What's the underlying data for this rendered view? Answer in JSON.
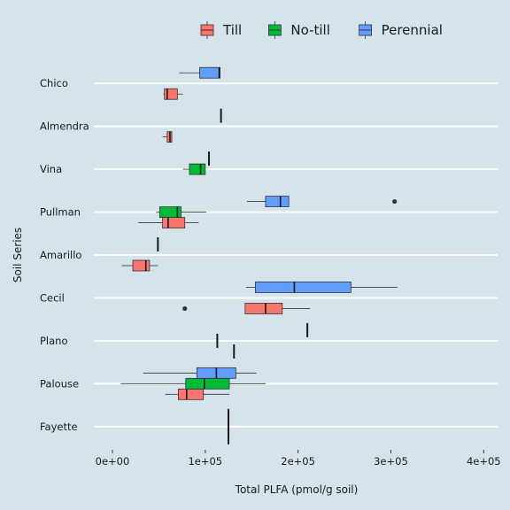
{
  "chart_data": {
    "type": "boxplot",
    "orientation": "horizontal",
    "xlabel": "Total PLFA (pmol/g soil)",
    "ylabel": "Soil Series",
    "xlim": [
      -20000,
      415000
    ],
    "x_ticks": [
      0,
      100000,
      200000,
      300000,
      400000
    ],
    "x_tick_labels": [
      "0e+00",
      "1e+05",
      "2e+05",
      "3e+05",
      "4e+05"
    ],
    "categories": [
      "Fayette",
      "Palouse",
      "Plano",
      "Cecil",
      "Amarillo",
      "Pullman",
      "Vina",
      "Almendra",
      "Chico"
    ],
    "legend": {
      "position": "top",
      "entries": [
        {
          "name": "Till",
          "color": "#f8766d"
        },
        {
          "name": "No-till",
          "color": "#00ba38"
        },
        {
          "name": "Perennial",
          "color": "#619cff"
        }
      ]
    },
    "grid": {
      "horizontal": true,
      "vertical": false
    },
    "series": [
      {
        "name": "Till",
        "color": "#f8766d",
        "boxes": [
          {
            "category": "Chico",
            "whisker_low": 55000,
            "q1": 56000,
            "median": 59000,
            "q3": 70000,
            "whisker_high": 76000,
            "outliers": []
          },
          {
            "category": "Almendra",
            "whisker_low": 54000,
            "q1": 59000,
            "median": 62000,
            "q3": 64000,
            "whisker_high": 64000,
            "outliers": []
          },
          {
            "category": "Pullman",
            "whisker_low": 28000,
            "q1": 54000,
            "median": 60000,
            "q3": 78000,
            "whisker_high": 93000,
            "outliers": []
          },
          {
            "category": "Amarillo",
            "whisker_low": 10000,
            "q1": 22000,
            "median": 36000,
            "q3": 40000,
            "whisker_high": 49000,
            "outliers": []
          },
          {
            "category": "Cecil",
            "whisker_low": 143000,
            "q1": 143000,
            "median": 165000,
            "q3": 183000,
            "whisker_high": 213000,
            "outliers": [
              78000
            ]
          },
          {
            "category": "Plano",
            "whisker_low": 131000,
            "q1": 131000,
            "median": 131000,
            "q3": 131000,
            "whisker_high": 131000,
            "outliers": []
          },
          {
            "category": "Palouse",
            "whisker_low": 57000,
            "q1": 71000,
            "median": 80000,
            "q3": 98000,
            "whisker_high": 126000,
            "outliers": []
          },
          {
            "category": "Fayette",
            "whisker_low": 125000,
            "q1": 125000,
            "median": 125000,
            "q3": 125000,
            "whisker_high": 125000,
            "outliers": []
          }
        ]
      },
      {
        "name": "No-till",
        "color": "#00ba38",
        "boxes": [
          {
            "category": "Vina",
            "whisker_low": 76000,
            "q1": 83000,
            "median": 95000,
            "q3": 100000,
            "whisker_high": 100000,
            "outliers": []
          },
          {
            "category": "Pullman",
            "whisker_low": 47000,
            "q1": 51000,
            "median": 70000,
            "q3": 74000,
            "whisker_high": 101000,
            "outliers": []
          },
          {
            "category": "Plano",
            "whisker_low": 113000,
            "q1": 113000,
            "median": 113000,
            "q3": 113000,
            "whisker_high": 113000,
            "outliers": []
          },
          {
            "category": "Palouse",
            "whisker_low": 9000,
            "q1": 79000,
            "median": 99000,
            "q3": 126000,
            "whisker_high": 165000,
            "outliers": []
          },
          {
            "category": "Fayette",
            "whisker_low": 125000,
            "q1": 125000,
            "median": 125000,
            "q3": 125000,
            "whisker_high": 125000,
            "outliers": []
          }
        ]
      },
      {
        "name": "Perennial",
        "color": "#619cff",
        "boxes": [
          {
            "category": "Chico",
            "whisker_low": 72000,
            "q1": 94000,
            "median": 115000,
            "q3": 116000,
            "whisker_high": 116000,
            "outliers": []
          },
          {
            "category": "Almendra",
            "whisker_low": 117000,
            "q1": 117000,
            "median": 117000,
            "q3": 117000,
            "whisker_high": 117000,
            "outliers": []
          },
          {
            "category": "Vina",
            "whisker_low": 104000,
            "q1": 104000,
            "median": 104000,
            "q3": 104000,
            "whisker_high": 104000,
            "outliers": []
          },
          {
            "category": "Pullman",
            "whisker_low": 145000,
            "q1": 165000,
            "median": 181000,
            "q3": 190000,
            "whisker_high": 190000,
            "outliers": [
              304000
            ]
          },
          {
            "category": "Amarillo",
            "whisker_low": 49000,
            "q1": 49000,
            "median": 49000,
            "q3": 49000,
            "whisker_high": 49000,
            "outliers": []
          },
          {
            "category": "Cecil",
            "whisker_low": 144000,
            "q1": 154000,
            "median": 196000,
            "q3": 257000,
            "whisker_high": 307000,
            "outliers": []
          },
          {
            "category": "Plano",
            "whisker_low": 210000,
            "q1": 210000,
            "median": 210000,
            "q3": 210000,
            "whisker_high": 210000,
            "outliers": []
          },
          {
            "category": "Palouse",
            "whisker_low": 33000,
            "q1": 91000,
            "median": 112000,
            "q3": 133000,
            "whisker_high": 155000,
            "outliers": []
          },
          {
            "category": "Fayette",
            "whisker_low": 125000,
            "q1": 125000,
            "median": 125000,
            "q3": 125000,
            "whisker_high": 125000,
            "outliers": []
          }
        ]
      }
    ]
  }
}
